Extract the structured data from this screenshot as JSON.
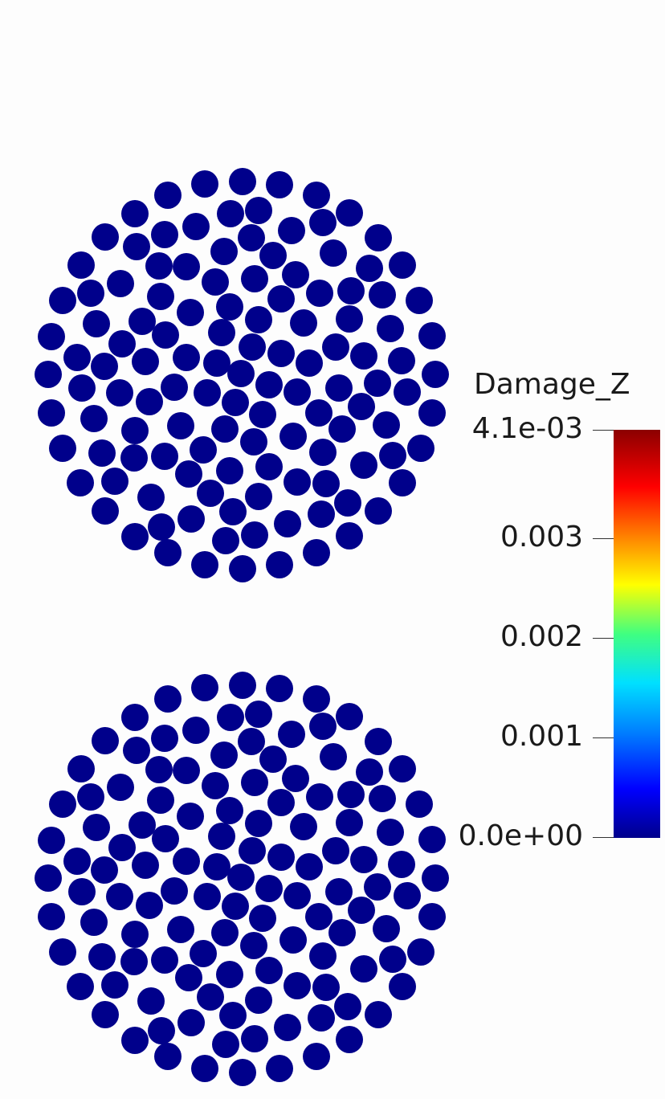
{
  "colorbar": {
    "title": "Damage_Z",
    "max_label": "4.1e-03",
    "min_label": "0.0e+00",
    "range": [
      0,
      0.0041
    ],
    "ticks": [
      {
        "value": 0.0041,
        "label": "4.1e-03"
      },
      {
        "value": 0.003,
        "label": "0.003"
      },
      {
        "value": 0.002,
        "label": "0.002"
      },
      {
        "value": 0.001,
        "label": "0.001"
      },
      {
        "value": 0.0,
        "label": "0.0e+00"
      }
    ],
    "colormap": [
      "#00008b",
      "#0000ff",
      "#0080ff",
      "#00e0ff",
      "#40ff80",
      "#ffff00",
      "#ff8000",
      "#ff0000",
      "#8b0000"
    ]
  },
  "bundles": [
    {
      "name": "top",
      "fiber_damage": 0.0
    },
    {
      "name": "bottom",
      "fiber_damage": 0.0
    }
  ],
  "fiber_color": "#00008b",
  "background_color": "#fdfdfd"
}
